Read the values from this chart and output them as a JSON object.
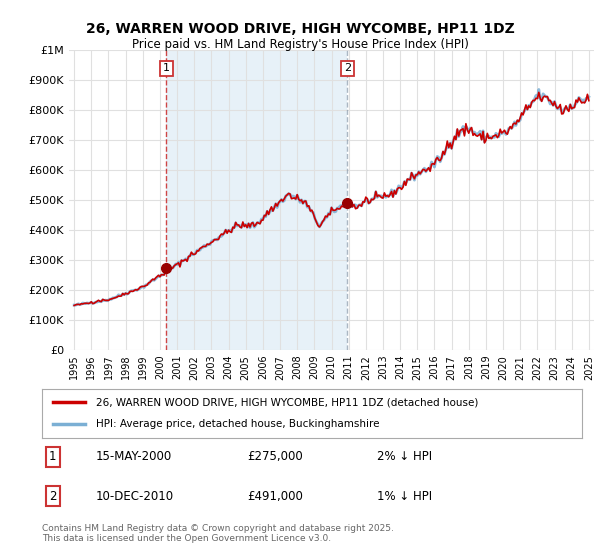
{
  "title": "26, WARREN WOOD DRIVE, HIGH WYCOMBE, HP11 1DZ",
  "subtitle": "Price paid vs. HM Land Registry's House Price Index (HPI)",
  "legend_line1": "26, WARREN WOOD DRIVE, HIGH WYCOMBE, HP11 1DZ (detached house)",
  "legend_line2": "HPI: Average price, detached house, Buckinghamshire",
  "footer": "Contains HM Land Registry data © Crown copyright and database right 2025.\nThis data is licensed under the Open Government Licence v3.0.",
  "transaction1": {
    "label": "1",
    "date": "15-MAY-2000",
    "price": "£275,000",
    "change": "2% ↓ HPI",
    "year": 2000.37
  },
  "transaction2": {
    "label": "2",
    "date": "10-DEC-2010",
    "price": "£491,000",
    "change": "1% ↓ HPI",
    "year": 2010.92
  },
  "ylim": [
    0,
    1000000
  ],
  "xlim": [
    1994.7,
    2025.3
  ],
  "yticks": [
    0,
    100000,
    200000,
    300000,
    400000,
    500000,
    600000,
    700000,
    800000,
    900000,
    1000000
  ],
  "ytick_labels": [
    "£0",
    "£100K",
    "£200K",
    "£300K",
    "£400K",
    "£500K",
    "£600K",
    "£700K",
    "£800K",
    "£900K",
    "£1M"
  ],
  "background_color": "#ffffff",
  "plot_bg_color": "#ffffff",
  "grid_color": "#e0e0e0",
  "shade_color": "#d8e8f4",
  "line_color_red": "#cc0000",
  "line_color_blue": "#7bafd4",
  "marker_color": "#990000",
  "vline1_color": "#cc3333",
  "vline2_color": "#8899aa",
  "label1_price": 275000,
  "label2_price": 491000
}
